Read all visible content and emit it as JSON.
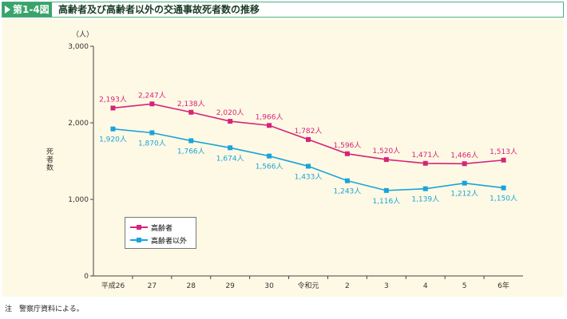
{
  "header": {
    "figure_number": "第1-4図",
    "title": "高齢者及び高齢者以外の交通事故死者数の推移"
  },
  "note": "注　警察庁資料による。",
  "chart_data": {
    "type": "line",
    "title": "高齢者及び高齢者以外の交通事故死者数の推移",
    "ylabel": "死者数",
    "yunit": "（人）",
    "xlabel": "",
    "ylim": [
      0,
      3000
    ],
    "yticks": [
      0,
      1000,
      2000,
      3000
    ],
    "ytick_labels": [
      "0",
      "1,000",
      "2,000",
      "3,000"
    ],
    "grid": false,
    "legend_position": "bottom-left",
    "categories": [
      "平成26",
      "27",
      "28",
      "29",
      "30",
      "令和元",
      "2",
      "3",
      "4",
      "5",
      "6年"
    ],
    "series": [
      {
        "name": "高齢者",
        "color": "#d6237a",
        "values": [
          2193,
          2247,
          2138,
          2020,
          1966,
          1782,
          1596,
          1520,
          1471,
          1466,
          1513
        ],
        "labels": [
          "2,193人",
          "2,247人",
          "2,138人",
          "2,020人",
          "1,966人",
          "1,782人",
          "1,596人",
          "1,520人",
          "1,471人",
          "1,466人",
          "1,513人"
        ]
      },
      {
        "name": "高齢者以外",
        "color": "#1aa3db",
        "values": [
          1920,
          1870,
          1766,
          1674,
          1566,
          1433,
          1243,
          1116,
          1139,
          1212,
          1150
        ],
        "labels": [
          "1,920人",
          "1,870人",
          "1,766人",
          "1,674人",
          "1,566人",
          "1,433人",
          "1,243人",
          "1,116人",
          "1,139人",
          "1,212人",
          "1,150人"
        ]
      }
    ]
  }
}
